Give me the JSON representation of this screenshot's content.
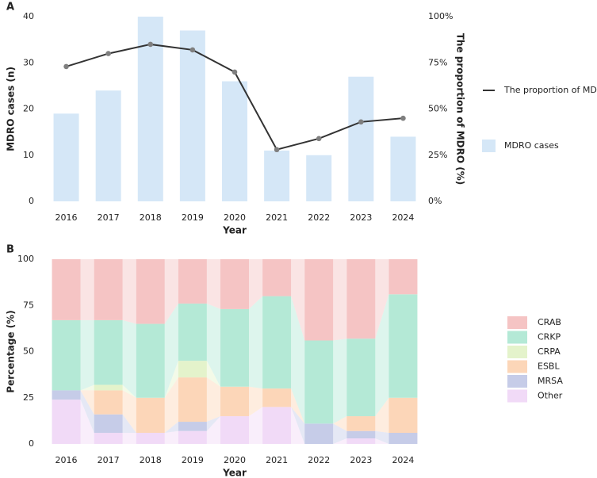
{
  "chart_data": [
    {
      "type": "bar_line",
      "panel_label": "A",
      "x_label": "Year",
      "y_label": "MDRO cases (n)",
      "y2_label": "The proportion of MDRO (%)",
      "categories": [
        "2016",
        "2017",
        "2018",
        "2019",
        "2020",
        "2021",
        "2022",
        "2023",
        "2024"
      ],
      "series": [
        {
          "name": "MDRO cases",
          "color": "#d5e7f7",
          "values": [
            19,
            24,
            40,
            37,
            26,
            11,
            10,
            27,
            14
          ]
        },
        {
          "name": "The proportion of MDRO",
          "color": "#333333",
          "marker_color": "#7f7f7f",
          "axis": "y2",
          "values": [
            73,
            80,
            85,
            82,
            70,
            28,
            34,
            43,
            45
          ]
        }
      ],
      "ylim": [
        0,
        40
      ],
      "yticks": [
        0,
        10,
        20,
        30,
        40
      ],
      "y2lim": [
        0,
        100
      ],
      "y2ticks": [
        {
          "value": 0,
          "label": "0%"
        },
        {
          "value": 25,
          "label": "25%"
        },
        {
          "value": 50,
          "label": "50%"
        },
        {
          "value": 75,
          "label": "75%"
        },
        {
          "value": 100,
          "label": "100%"
        }
      ]
    },
    {
      "type": "stacked_bar",
      "panel_label": "B",
      "x_label": "Year",
      "y_label": "Percentage (%)",
      "categories": [
        "2016",
        "2017",
        "2018",
        "2019",
        "2020",
        "2021",
        "2022",
        "2023",
        "2024"
      ],
      "series": [
        {
          "name": "CRAB",
          "color": "#f5c4c4",
          "values": [
            33,
            33,
            35,
            24,
            27,
            20,
            44,
            43,
            19
          ]
        },
        {
          "name": "CRKP",
          "color": "#b4e9d6",
          "values": [
            38,
            35,
            40,
            31,
            42,
            50,
            45,
            42,
            56
          ]
        },
        {
          "name": "CRPA",
          "color": "#e4f3cb",
          "values": [
            0,
            3,
            0,
            9,
            0,
            0,
            0,
            0,
            0
          ]
        },
        {
          "name": "ESBL",
          "color": "#fcd6b8",
          "values": [
            0,
            13,
            19,
            24,
            16,
            10,
            0,
            8,
            19
          ]
        },
        {
          "name": "MRSA",
          "color": "#c6cce8",
          "values": [
            5,
            10,
            0,
            5,
            0,
            0,
            11,
            4,
            6
          ]
        },
        {
          "name": "Other",
          "color": "#f1daf7",
          "values": [
            24,
            6,
            6,
            7,
            15,
            20,
            0,
            3,
            0
          ]
        }
      ],
      "ylim": [
        0,
        100
      ],
      "yticks": [
        0,
        25,
        50,
        75,
        100
      ]
    }
  ]
}
